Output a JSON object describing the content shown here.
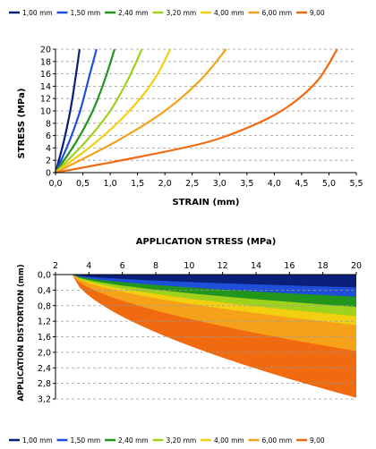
{
  "chart_data": [
    {
      "type": "line",
      "xlabel": "STRAIN (mm)",
      "ylabel": "STRESS (MPa)",
      "xlim": [
        0,
        5.5
      ],
      "ylim": [
        0,
        20
      ],
      "x_ticks": [
        "0,0",
        "0,5",
        "1,0",
        "1,5",
        "2,0",
        "2,5",
        "3,0",
        "3,5",
        "4,0",
        "4,5",
        "5,0",
        "5,5"
      ],
      "y_ticks": [
        "0",
        "2",
        "4",
        "6",
        "8",
        "10",
        "12",
        "14",
        "16",
        "18",
        "20"
      ],
      "grid": "horizontal dashed",
      "legend": "top",
      "legend_labels": [
        "1,00 mm",
        "1,50 mm",
        "2,40 mm",
        "3,20 mm",
        "4,00 mm",
        "6,00 mm",
        "9,00"
      ],
      "colors": [
        "#0a1f7a",
        "#1f4fd8",
        "#22961c",
        "#9fd21c",
        "#f2cf10",
        "#f5a21a",
        "#f06a10"
      ],
      "series": [
        {
          "points": [
            [
              0,
              0
            ],
            [
              0.15,
              5
            ],
            [
              0.27,
              10
            ],
            [
              0.36,
              15
            ],
            [
              0.44,
              20
            ]
          ]
        },
        {
          "points": [
            [
              0,
              0
            ],
            [
              0.25,
              5
            ],
            [
              0.45,
              10
            ],
            [
              0.6,
              15
            ],
            [
              0.75,
              20
            ]
          ]
        },
        {
          "points": [
            [
              0,
              0
            ],
            [
              0.38,
              5
            ],
            [
              0.68,
              10
            ],
            [
              0.9,
              15
            ],
            [
              1.08,
              20
            ]
          ]
        },
        {
          "points": [
            [
              0,
              0
            ],
            [
              0.55,
              5
            ],
            [
              1.0,
              10
            ],
            [
              1.32,
              15
            ],
            [
              1.58,
              20
            ]
          ]
        },
        {
          "points": [
            [
              0,
              0
            ],
            [
              0.75,
              5
            ],
            [
              1.35,
              10
            ],
            [
              1.8,
              15
            ],
            [
              2.1,
              20
            ]
          ]
        },
        {
          "points": [
            [
              0,
              0
            ],
            [
              1.1,
              5
            ],
            [
              2.0,
              10
            ],
            [
              2.65,
              15
            ],
            [
              3.12,
              20
            ]
          ]
        },
        {
          "points": [
            [
              0,
              0
            ],
            [
              1.5,
              2.5
            ],
            [
              2.8,
              5
            ],
            [
              3.7,
              8
            ],
            [
              4.3,
              11
            ],
            [
              4.8,
              15
            ],
            [
              5.15,
              20
            ]
          ]
        }
      ]
    },
    {
      "type": "area",
      "title": "APPLICATION STRESS (MPa)",
      "ylabel": "APPLICATION DISTORTION (mm)",
      "xlim": [
        2,
        20
      ],
      "ylim": [
        0,
        3.2
      ],
      "y_inverted": true,
      "x_ticks": [
        "2",
        "4",
        "6",
        "8",
        "10",
        "12",
        "14",
        "16",
        "18",
        "20"
      ],
      "y_ticks": [
        "0,0",
        "0,4",
        "0,8",
        "1,2",
        "1,6",
        "2,0",
        "2,4",
        "2,8",
        "3,2"
      ],
      "grid": "horizontal dashed",
      "legend": "bottom",
      "legend_labels": [
        "1,00 mm",
        "1,50 mm",
        "2,40 mm",
        "3,20 mm",
        "4,00 mm",
        "6,00 mm",
        "9,00"
      ],
      "colors": [
        "#0a1f7a",
        "#1f4fd8",
        "#22961c",
        "#9fd21c",
        "#f2cf10",
        "#f5a21a",
        "#f06a10"
      ],
      "start_x": 3,
      "end_depth_at_20": [
        0.33,
        0.57,
        0.83,
        1.07,
        1.3,
        1.97,
        3.17
      ]
    }
  ]
}
